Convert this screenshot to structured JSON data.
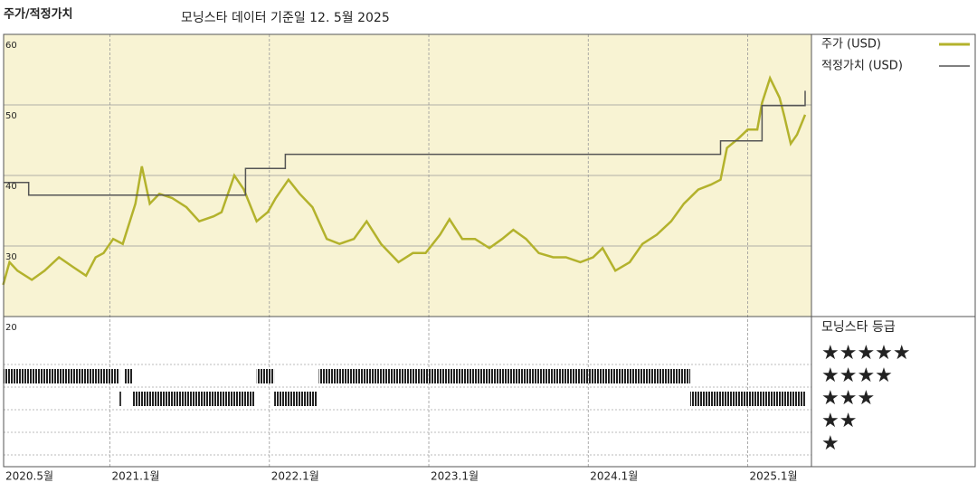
{
  "chart_data": {
    "type": "line",
    "title": "주가/적정가치",
    "subtitle": "모닝스타 데이터 기준일 12. 5월 2025",
    "background": "#f8f3d3",
    "xlim": [
      2020.333,
      2025.4
    ],
    "xticks": [
      {
        "value": 2020.333,
        "label": "2020.5월"
      },
      {
        "value": 2021,
        "label": "2021.1월"
      },
      {
        "value": 2022,
        "label": "2022.1월"
      },
      {
        "value": 2023,
        "label": "2023.1월"
      },
      {
        "value": 2024,
        "label": "2024.1월"
      },
      {
        "value": 2025,
        "label": "2025.1월"
      }
    ],
    "ylim": [
      20,
      60
    ],
    "yticks": [
      20,
      30,
      40,
      50,
      60
    ],
    "grid": true,
    "series": [
      {
        "name": "주가 (USD)",
        "color": "#b3b22c",
        "x": [
          2020.33,
          2020.37,
          2020.42,
          2020.51,
          2020.59,
          2020.68,
          2020.77,
          2020.85,
          2020.91,
          2020.96,
          2021.02,
          2021.08,
          2021.16,
          2021.2,
          2021.25,
          2021.31,
          2021.39,
          2021.48,
          2021.56,
          2021.65,
          2021.7,
          2021.78,
          2021.84,
          2021.92,
          2021.99,
          2022.04,
          2022.12,
          2022.19,
          2022.27,
          2022.36,
          2022.44,
          2022.53,
          2022.61,
          2022.7,
          2022.81,
          2022.9,
          2022.98,
          2023.07,
          2023.13,
          2023.21,
          2023.29,
          2023.38,
          2023.46,
          2023.53,
          2023.61,
          2023.69,
          2023.78,
          2023.86,
          2023.95,
          2024.03,
          2024.09,
          2024.17,
          2024.26,
          2024.34,
          2024.43,
          2024.52,
          2024.6,
          2024.69,
          2024.77,
          2024.83,
          2024.87,
          2024.94,
          2025.0,
          2025.06,
          2025.09,
          2025.14,
          2025.2,
          2025.23,
          2025.27,
          2025.31,
          2025.36
        ],
        "values": [
          24.5,
          27.7,
          26.5,
          25.2,
          26.5,
          28.4,
          27,
          25.8,
          28.4,
          29,
          31,
          30.3,
          36,
          41.3,
          36,
          37.4,
          36.8,
          35.5,
          33.5,
          34.2,
          34.8,
          40,
          38,
          33.5,
          34.8,
          36.8,
          39.4,
          37.4,
          35.5,
          31,
          30.3,
          31,
          33.5,
          30.3,
          27.7,
          29,
          29,
          31.6,
          33.8,
          31,
          31,
          29.7,
          31,
          32.3,
          31,
          29,
          28.4,
          28.4,
          27.7,
          28.4,
          29.7,
          26.5,
          27.7,
          30.3,
          31.6,
          33.5,
          36,
          38,
          38.7,
          39.4,
          43.9,
          45.2,
          46.5,
          46.5,
          50.3,
          53.8,
          51,
          48.4,
          44.5,
          45.8,
          48.6
        ]
      },
      {
        "name": "적정가치 (USD)",
        "color": "#555555",
        "x": [
          2020.33,
          2020.49,
          2020.49,
          2021.85,
          2021.85,
          2022.1,
          2022.1,
          2024.83,
          2024.83,
          2025.09,
          2025.09,
          2025.36,
          2025.36
        ],
        "values": [
          39,
          39,
          37.2,
          37.2,
          41,
          41,
          43,
          43,
          44.9,
          44.9,
          49.9,
          49.9,
          52
        ]
      }
    ],
    "rating_title": "모닝스타 등급",
    "rating_labels": [
      "★★★★★",
      "★★★★",
      "★★★",
      "★★",
      "★"
    ],
    "rating_levels": [
      5,
      4,
      3,
      2,
      1
    ],
    "rating_periods": [
      {
        "start": 2020.33,
        "end": 2021.06,
        "stars": 4
      },
      {
        "start": 2021.06,
        "end": 2021.07,
        "stars": 3
      },
      {
        "start": 2021.09,
        "end": 2021.14,
        "stars": 4
      },
      {
        "start": 2021.14,
        "end": 2021.91,
        "stars": 3
      },
      {
        "start": 2021.92,
        "end": 2022.03,
        "stars": 4
      },
      {
        "start": 2022.03,
        "end": 2022.3,
        "stars": 3
      },
      {
        "start": 2022.31,
        "end": 2024.64,
        "stars": 4
      },
      {
        "start": 2024.64,
        "end": 2025.36,
        "stars": 3
      }
    ]
  }
}
